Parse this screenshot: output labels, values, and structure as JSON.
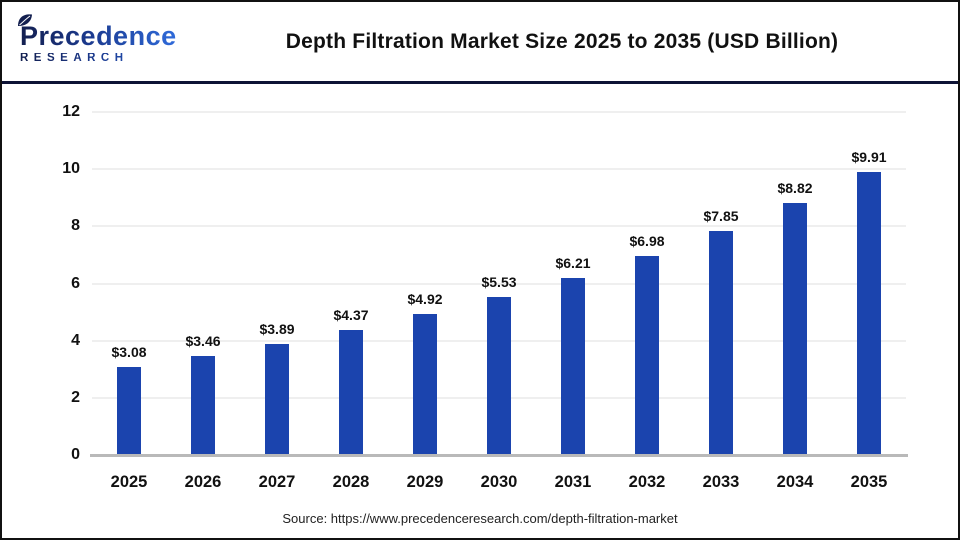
{
  "logo": {
    "brand_line1": "Precedence",
    "brand_line2": "RESEARCH"
  },
  "chart_data": {
    "type": "bar",
    "title": "Depth Filtration Market Size 2025 to 2035 (USD Billion)",
    "categories": [
      "2025",
      "2026",
      "2027",
      "2028",
      "2029",
      "2030",
      "2031",
      "2032",
      "2033",
      "2034",
      "2035"
    ],
    "values": [
      3.08,
      3.46,
      3.89,
      4.37,
      4.92,
      5.53,
      6.21,
      6.98,
      7.85,
      8.82,
      9.91
    ],
    "value_labels": [
      "$3.08",
      "$3.46",
      "$3.89",
      "$4.37",
      "$4.92",
      "$5.53",
      "$6.21",
      "$6.98",
      "$7.85",
      "$8.82",
      "$9.91"
    ],
    "xlabel": "",
    "ylabel": "",
    "y_ticks": [
      0,
      2,
      4,
      6,
      8,
      10,
      12
    ],
    "ylim": [
      0,
      12
    ],
    "grid": true,
    "legend": null,
    "bar_color": "#1b44ae"
  },
  "source": "Source: https://www.precedenceresearch.com/depth-filtration-market",
  "colors": {
    "bar": "#1b44ae",
    "header_divider": "#0d1335",
    "logo_navy": "#131f4f",
    "logo_blue": "#2f6bdb",
    "gridline": "#efefef",
    "axis_line": "#b9b9b9"
  }
}
